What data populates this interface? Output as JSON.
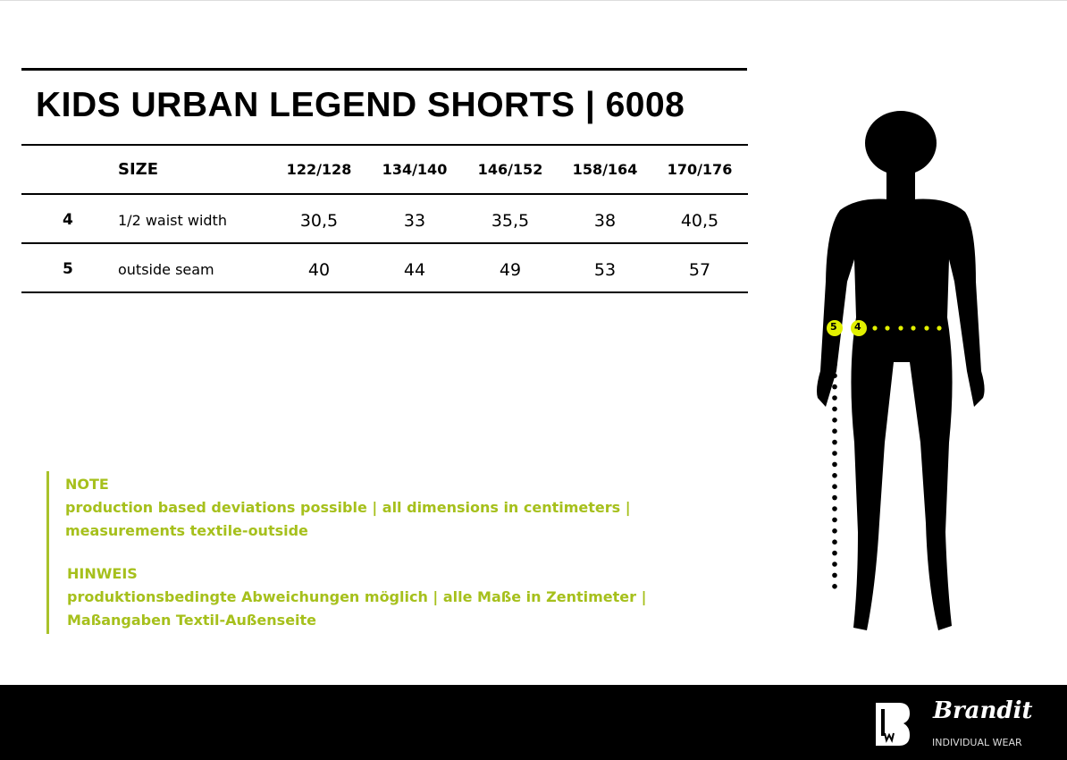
{
  "title": "KIDS URBAN LEGEND SHORTS | 6008",
  "table": {
    "size_label": "SIZE",
    "sizes": [
      "122/128",
      "134/140",
      "146/152",
      "158/164",
      "170/176"
    ],
    "rows": [
      {
        "num": "4",
        "label": "1/2 waist width",
        "values": [
          "30,5",
          "33",
          "35,5",
          "38",
          "40,5"
        ]
      },
      {
        "num": "5",
        "label": "outside seam",
        "values": [
          "40",
          "44",
          "49",
          "53",
          "57"
        ]
      }
    ]
  },
  "note": {
    "heading": "NOTE",
    "line1": "production based deviations possible | all dimensions in centimeters |",
    "line2": "measurements textile-outside"
  },
  "hinweis": {
    "heading": "HINWEIS",
    "line1": "produktionsbedingte Abweichungen möglich | alle Maße in Zentimeter |",
    "line2": "Maßangaben Textil-Außenseite"
  },
  "figure": {
    "marker_waist": "4",
    "marker_seam": "5",
    "accent": "#e2f000"
  },
  "brand": {
    "logo_text": "Brandit",
    "tagline": "INDIVIDUAL WEAR"
  }
}
